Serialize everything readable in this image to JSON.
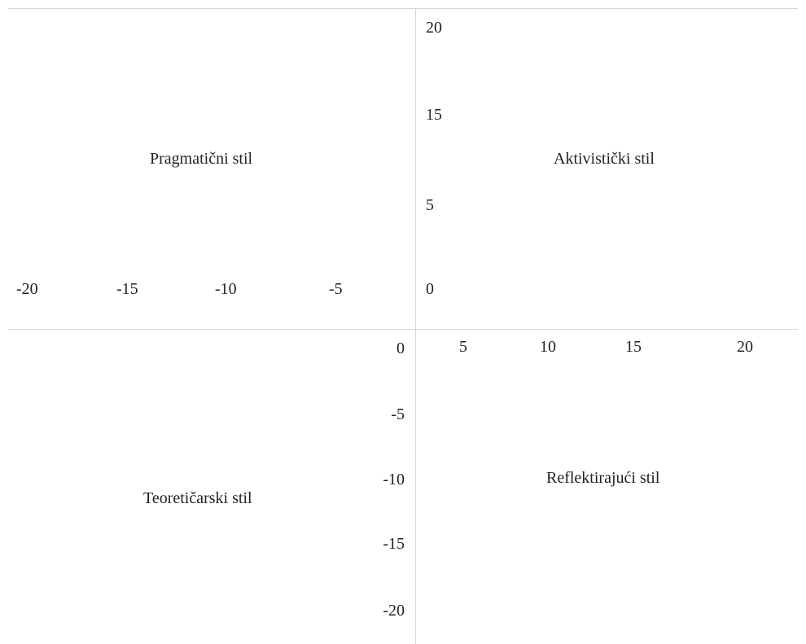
{
  "quadrants": {
    "top_left": "Pragmatični stil",
    "top_right": "Aktivistički stil",
    "bottom_left": "Teoretičarski stil",
    "bottom_right": "Reflektirajući stil"
  },
  "top_left_x_ticks": [
    "-20",
    "-15",
    "-10",
    "-5"
  ],
  "top_right_y_ticks": [
    "20",
    "15",
    "5",
    "0"
  ],
  "bottom_right_x_ticks": [
    "5",
    "10",
    "15",
    "20"
  ],
  "bottom_left_y_ticks": [
    "0",
    "-5",
    "-10",
    "-15",
    "-20"
  ]
}
